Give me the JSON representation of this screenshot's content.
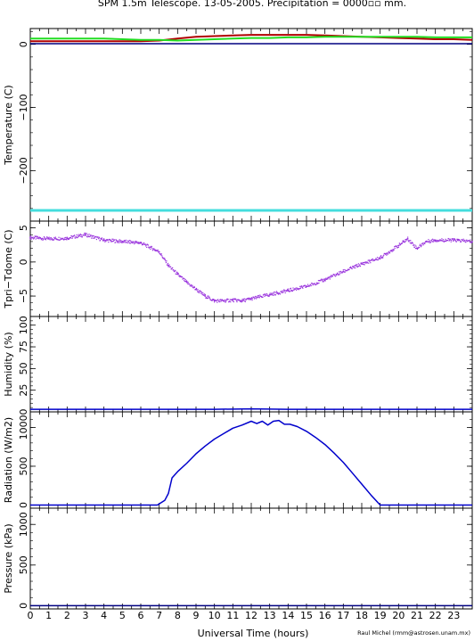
{
  "title": "SPM 1.5m Telescope. 13-05-2005. Precipitation = 0000▫▫ mm.",
  "credit": "Raul Michel (rmm@astrosen.unam.mx)",
  "xlabel": "Universal Time (hours)",
  "colors": {
    "dark_red": "#b00000",
    "green": "#22dd22",
    "navy": "#000080",
    "cyan": "#44dddd",
    "purple": "#9933dd",
    "blue": "#0000cc"
  },
  "chart_data": [
    {
      "type": "line",
      "ylabel": "Temperature (C)",
      "xlim": [
        0,
        24
      ],
      "ylim": [
        -280,
        25
      ],
      "yticks": [
        0,
        -100,
        -200
      ],
      "ytick_labels": [
        "0",
        "−100",
        "−200"
      ],
      "xticks": [
        0,
        1,
        2,
        3,
        4,
        5,
        6,
        7,
        8,
        9,
        10,
        11,
        12,
        13,
        14,
        15,
        16,
        17,
        18,
        19,
        20,
        21,
        22,
        23
      ],
      "series": [
        {
          "color": "dark_red",
          "x": [
            0,
            2,
            4,
            6,
            7,
            8,
            9,
            10,
            11,
            12,
            13,
            14,
            15,
            16,
            17,
            18,
            19,
            20,
            21,
            22,
            23,
            24
          ],
          "y": [
            5,
            5,
            5,
            5,
            6,
            9,
            12,
            13,
            14,
            15,
            15,
            15,
            15,
            14,
            13,
            12,
            11,
            10,
            9,
            8,
            8,
            7
          ]
        },
        {
          "color": "green",
          "x": [
            0,
            2,
            4,
            6,
            7,
            8,
            9,
            10,
            11,
            12,
            13,
            14,
            15,
            16,
            17,
            18,
            19,
            20,
            21,
            22,
            23,
            24
          ],
          "y": [
            9,
            9,
            9,
            7,
            7,
            6,
            7,
            8,
            9,
            10,
            10,
            11,
            11,
            12,
            12,
            12,
            12,
            12,
            12,
            11,
            11,
            11
          ]
        },
        {
          "color": "navy",
          "x": [
            0,
            24
          ],
          "y": [
            1,
            1
          ]
        },
        {
          "color": "cyan",
          "x": [
            0,
            24
          ],
          "y": [
            -263,
            -263
          ]
        }
      ]
    },
    {
      "type": "scatter",
      "ylabel": "Tpri−Tdome (C)",
      "xlim": [
        0,
        24
      ],
      "ylim": [
        -8,
        6
      ],
      "yticks": [
        5,
        0,
        -5
      ],
      "ytick_labels": [
        "5",
        "0",
        "−5"
      ],
      "xticks": [
        0,
        1,
        2,
        3,
        4,
        5,
        6,
        7,
        8,
        9,
        10,
        11,
        12,
        13,
        14,
        15,
        16,
        17,
        18,
        19,
        20,
        21,
        22,
        23
      ],
      "series": [
        {
          "color": "purple",
          "x": [
            0,
            1,
            2,
            3,
            4,
            5,
            6,
            7,
            7.5,
            8,
            8.5,
            9,
            9.5,
            10,
            10.5,
            11,
            11.5,
            12,
            13,
            14,
            15,
            16,
            17,
            18,
            19,
            20,
            20.5,
            21,
            21.5,
            22,
            23,
            24
          ],
          "y": [
            3.6,
            3.4,
            3.5,
            4.0,
            3.2,
            3.0,
            2.8,
            1.5,
            -0.5,
            -1.8,
            -3.0,
            -4.0,
            -5.0,
            -5.7,
            -5.7,
            -5.6,
            -5.7,
            -5.4,
            -4.8,
            -4.2,
            -3.6,
            -2.6,
            -1.4,
            -0.3,
            0.6,
            2.4,
            3.4,
            2.0,
            3.0,
            3.2,
            3.2,
            3.0
          ]
        }
      ]
    },
    {
      "type": "line",
      "ylabel": "Humidity (%)",
      "xlim": [
        0,
        24
      ],
      "ylim": [
        0,
        110
      ],
      "yticks": [
        100,
        75,
        50,
        25,
        0
      ],
      "ytick_labels": [
        "100",
        "75",
        "50",
        "25",
        "0"
      ],
      "xticks": [
        0,
        1,
        2,
        3,
        4,
        5,
        6,
        7,
        8,
        9,
        10,
        11,
        12,
        13,
        14,
        15,
        16,
        17,
        18,
        19,
        20,
        21,
        22,
        23
      ],
      "series": [
        {
          "color": "blue",
          "x": [
            0,
            10,
            12,
            14,
            16,
            18,
            20,
            24
          ],
          "y": [
            3,
            3,
            3.5,
            3,
            3,
            3,
            3,
            3
          ]
        }
      ]
    },
    {
      "type": "line",
      "ylabel": "Radiation (W/m2)",
      "xlim": [
        0,
        24
      ],
      "ylim": [
        -40,
        1200
      ],
      "yticks": [
        1000,
        500,
        0
      ],
      "ytick_labels": [
        "1000",
        "500",
        "0"
      ],
      "xticks": [
        0,
        1,
        2,
        3,
        4,
        5,
        6,
        7,
        8,
        9,
        10,
        11,
        12,
        13,
        14,
        15,
        16,
        17,
        18,
        19,
        20,
        21,
        22,
        23
      ],
      "series": [
        {
          "color": "blue",
          "x": [
            0,
            6.9,
            7.3,
            7.5,
            7.7,
            8,
            8.5,
            9,
            9.5,
            10,
            10.5,
            11,
            11.5,
            12,
            12.3,
            12.6,
            12.9,
            13.2,
            13.5,
            13.8,
            14.1,
            14.5,
            15,
            15.5,
            16,
            16.5,
            17,
            17.5,
            18,
            18.5,
            19,
            24
          ],
          "y": [
            0,
            0,
            60,
            150,
            350,
            430,
            540,
            660,
            760,
            850,
            920,
            990,
            1030,
            1080,
            1050,
            1080,
            1030,
            1080,
            1090,
            1040,
            1040,
            1010,
            950,
            870,
            780,
            670,
            550,
            410,
            270,
            130,
            0,
            0
          ]
        }
      ]
    },
    {
      "type": "line",
      "ylabel": "Pressure (kPa)",
      "xlim": [
        0,
        24
      ],
      "ylim": [
        -40,
        1200
      ],
      "yticks": [
        1000,
        500,
        0
      ],
      "ytick_labels": [
        "1000",
        "500",
        "0"
      ],
      "xticks": [
        0,
        1,
        2,
        3,
        4,
        5,
        6,
        7,
        8,
        9,
        10,
        11,
        12,
        13,
        14,
        15,
        16,
        17,
        18,
        19,
        20,
        21,
        22,
        23
      ],
      "xtick_labels": [
        "0",
        "1",
        "2",
        "3",
        "4",
        "5",
        "6",
        "7",
        "8",
        "9",
        "10",
        "11",
        "12",
        "13",
        "14",
        "15",
        "16",
        "17",
        "18",
        "19",
        "20",
        "21",
        "22",
        "23"
      ],
      "series": [
        {
          "color": "navy",
          "x": [
            0,
            24
          ],
          "y": [
            0,
            0
          ]
        }
      ]
    }
  ]
}
